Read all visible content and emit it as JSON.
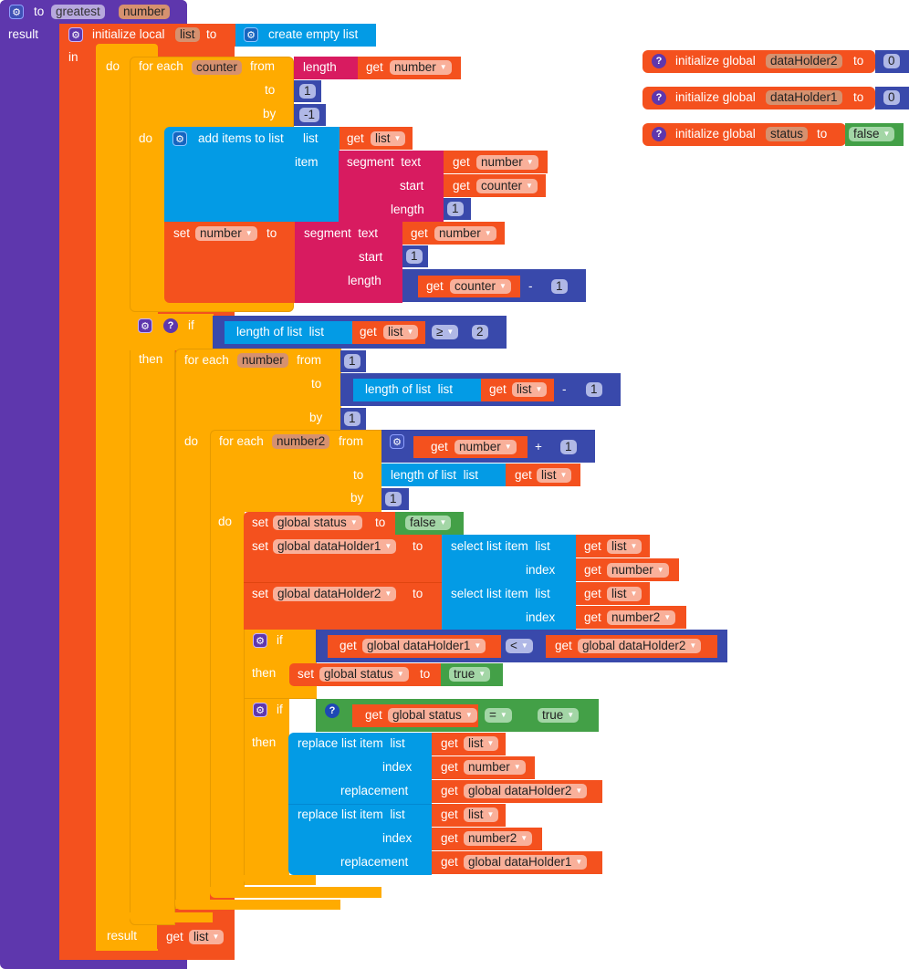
{
  "procedure": {
    "to": "to",
    "name": "greatest",
    "param": "number",
    "result_label": "result"
  },
  "init_local": {
    "label": "initialize local",
    "var": "list",
    "to": "to",
    "value": "create empty list",
    "in": "in"
  },
  "do_label": "do",
  "loop1": {
    "label": "for each",
    "var": "counter",
    "from": "from",
    "to": "to",
    "by": "by",
    "do": "do",
    "from_block": {
      "label": "length",
      "get": "get",
      "var": "number"
    },
    "to_value": "1",
    "by_value": "-1"
  },
  "add_items": {
    "label": "add items to list",
    "list": "list",
    "item": "item",
    "get": "get",
    "list_var": "list",
    "segment": {
      "label": "segment",
      "text": "text",
      "start": "start",
      "length": "length",
      "get": "get",
      "text_var": "number",
      "start_var": "counter",
      "length_value": "1"
    }
  },
  "set_number": {
    "set": "set",
    "var": "number",
    "to": "to",
    "segment": {
      "label": "segment",
      "text": "text",
      "start": "start",
      "length": "length",
      "get": "get",
      "text_var": "number",
      "start_value": "1",
      "minus": {
        "get": "get",
        "var": "counter",
        "op": "-",
        "value": "1"
      }
    }
  },
  "if1": {
    "if": "if",
    "then": "then",
    "cond": {
      "label": "length of list",
      "list": "list",
      "get": "get",
      "var": "list",
      "op": "≥",
      "value": "2"
    }
  },
  "loop2": {
    "label": "for each",
    "var": "number",
    "from": "from",
    "to": "to",
    "by": "by",
    "do": "do",
    "from_value": "1",
    "to_block": {
      "label": "length of list",
      "list": "list",
      "get": "get",
      "var": "list",
      "op": "-",
      "value": "1"
    },
    "by_value": "1"
  },
  "loop3": {
    "label": "for each",
    "var": "number2",
    "from": "from",
    "to": "to",
    "by": "by",
    "do": "do",
    "from_block": {
      "get": "get",
      "var": "number",
      "op": "+",
      "value": "1"
    },
    "to_block": {
      "label": "length of list",
      "list": "list",
      "get": "get",
      "var": "list"
    },
    "by_value": "1"
  },
  "set_status": {
    "set": "set",
    "var": "global status",
    "to": "to",
    "value": "false"
  },
  "set_dh1": {
    "set": "set",
    "var": "global dataHolder1",
    "to": "to",
    "select": {
      "label": "select list item",
      "list": "list",
      "index": "index",
      "get": "get",
      "list_var": "list",
      "index_var": "number"
    }
  },
  "set_dh2": {
    "set": "set",
    "var": "global dataHolder2",
    "to": "to",
    "select": {
      "label": "select list item",
      "list": "list",
      "index": "index",
      "get": "get",
      "list_var": "list",
      "index_var": "number2"
    }
  },
  "if2": {
    "if": "if",
    "then": "then",
    "cond": {
      "get": "get",
      "left": "global dataHolder1",
      "op": "<",
      "right": "global dataHolder2"
    },
    "set": {
      "set": "set",
      "var": "global status",
      "to": "to",
      "value": "true"
    }
  },
  "if3": {
    "if": "if",
    "then": "then",
    "cond": {
      "get": "get",
      "left": "global status",
      "op": "=",
      "right": "true"
    }
  },
  "replace1": {
    "label": "replace list item",
    "list": "list",
    "index": "index",
    "replacement": "replacement",
    "get": "get",
    "list_var": "list",
    "index_var": "number",
    "replacement_var": "global dataHolder2"
  },
  "replace2": {
    "label": "replace list item",
    "list": "list",
    "index": "index",
    "replacement": "replacement",
    "get": "get",
    "list_var": "list",
    "index_var": "number2",
    "replacement_var": "global dataHolder1"
  },
  "result": {
    "label": "result",
    "get": "get",
    "var": "list"
  },
  "globals": [
    {
      "label": "initialize global",
      "var": "dataHolder2",
      "to": "to",
      "value": "0"
    },
    {
      "label": "initialize global",
      "var": "dataHolder1",
      "to": "to",
      "value": "0"
    },
    {
      "label": "initialize global",
      "var": "status",
      "to": "to",
      "value": "false"
    }
  ],
  "icons": {
    "gear": "gear-icon",
    "help": "help-icon",
    "dropdown": "dropdown-arrow-icon"
  },
  "colors": {
    "procedure": "#5e37ad",
    "variable": "#f4511e",
    "control": "#ffab00",
    "list": "#039be5",
    "text": "#d81b60",
    "math": "#3949ab",
    "logic": "#43a047"
  }
}
